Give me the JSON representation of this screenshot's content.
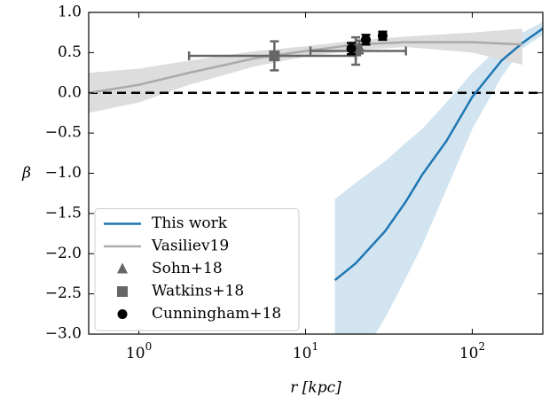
{
  "chart_data": {
    "type": "line",
    "xlabel": "r [kpc]",
    "ylabel": "β",
    "xscale": "log",
    "xlim": [
      0.5,
      265
    ],
    "xticks": [
      {
        "value": 1,
        "label": "10",
        "power": "0"
      },
      {
        "value": 10,
        "label": "10",
        "power": "1"
      },
      {
        "value": 100,
        "label": "10",
        "power": "2"
      }
    ],
    "ylim": [
      -3.0,
      1.0
    ],
    "yticks": [
      {
        "value": -3.0,
        "label": "−3.0"
      },
      {
        "value": -2.5,
        "label": "−2.5"
      },
      {
        "value": -2.0,
        "label": "−2.0"
      },
      {
        "value": -1.5,
        "label": "−1.5"
      },
      {
        "value": -1.0,
        "label": "−1.0"
      },
      {
        "value": -0.5,
        "label": "−0.5"
      },
      {
        "value": 0.0,
        "label": "0.0"
      },
      {
        "value": 0.5,
        "label": "0.5"
      },
      {
        "value": 1.0,
        "label": "1.0"
      }
    ],
    "hline": {
      "value": 0,
      "color": "#000000",
      "dashed": true
    },
    "legend": "lower left",
    "series": [
      {
        "name": "This work",
        "kind": "line",
        "color": "#1f77b4",
        "band_opacity": 0.2,
        "x": [
          15,
          20,
          30,
          40,
          50,
          70,
          100,
          150,
          200,
          265
        ],
        "values": [
          -2.33,
          -2.12,
          -1.72,
          -1.35,
          -1.02,
          -0.6,
          -0.05,
          0.4,
          0.62,
          0.8
        ],
        "upper": [
          -1.32,
          -1.12,
          -0.85,
          -0.62,
          -0.45,
          -0.12,
          0.25,
          0.6,
          0.75,
          0.88
        ],
        "lower": [
          -3.8,
          -3.4,
          -2.8,
          -2.3,
          -1.9,
          -1.2,
          -0.45,
          0.2,
          0.55,
          0.72
        ]
      },
      {
        "name": "Vasiliev19",
        "kind": "line",
        "color": "#aaaaaa",
        "band_color": "#dddddd",
        "x": [
          0.5,
          1,
          2,
          5,
          10,
          20,
          40,
          100,
          200
        ],
        "values": [
          0.0,
          0.1,
          0.25,
          0.43,
          0.52,
          0.6,
          0.63,
          0.63,
          0.6
        ],
        "upper": [
          0.25,
          0.3,
          0.4,
          0.52,
          0.58,
          0.65,
          0.7,
          0.75,
          0.8
        ],
        "lower": [
          -0.25,
          -0.12,
          0.1,
          0.33,
          0.45,
          0.53,
          0.57,
          0.5,
          0.35
        ]
      },
      {
        "name": "Sohn+18",
        "kind": "points",
        "marker": "triangle",
        "color": "#666666",
        "x": [
          21
        ],
        "values": [
          0.57
        ],
        "yerr": [
          0.08
        ]
      },
      {
        "name": "Watkins+18",
        "kind": "points",
        "marker": "square",
        "color": "#666666",
        "x": [
          6.5,
          20
        ],
        "values": [
          0.46,
          0.52
        ],
        "yerr": [
          0.18,
          0.17
        ],
        "xmin": [
          2,
          10.7
        ],
        "xmax": [
          20,
          40
        ]
      },
      {
        "name": "Cunningham+18",
        "kind": "points",
        "marker": "circle",
        "color": "#000000",
        "x": [
          18.8,
          23,
          29
        ],
        "values": [
          0.55,
          0.66,
          0.71
        ],
        "yerr": [
          0.07,
          0.06,
          0.05
        ]
      }
    ]
  }
}
